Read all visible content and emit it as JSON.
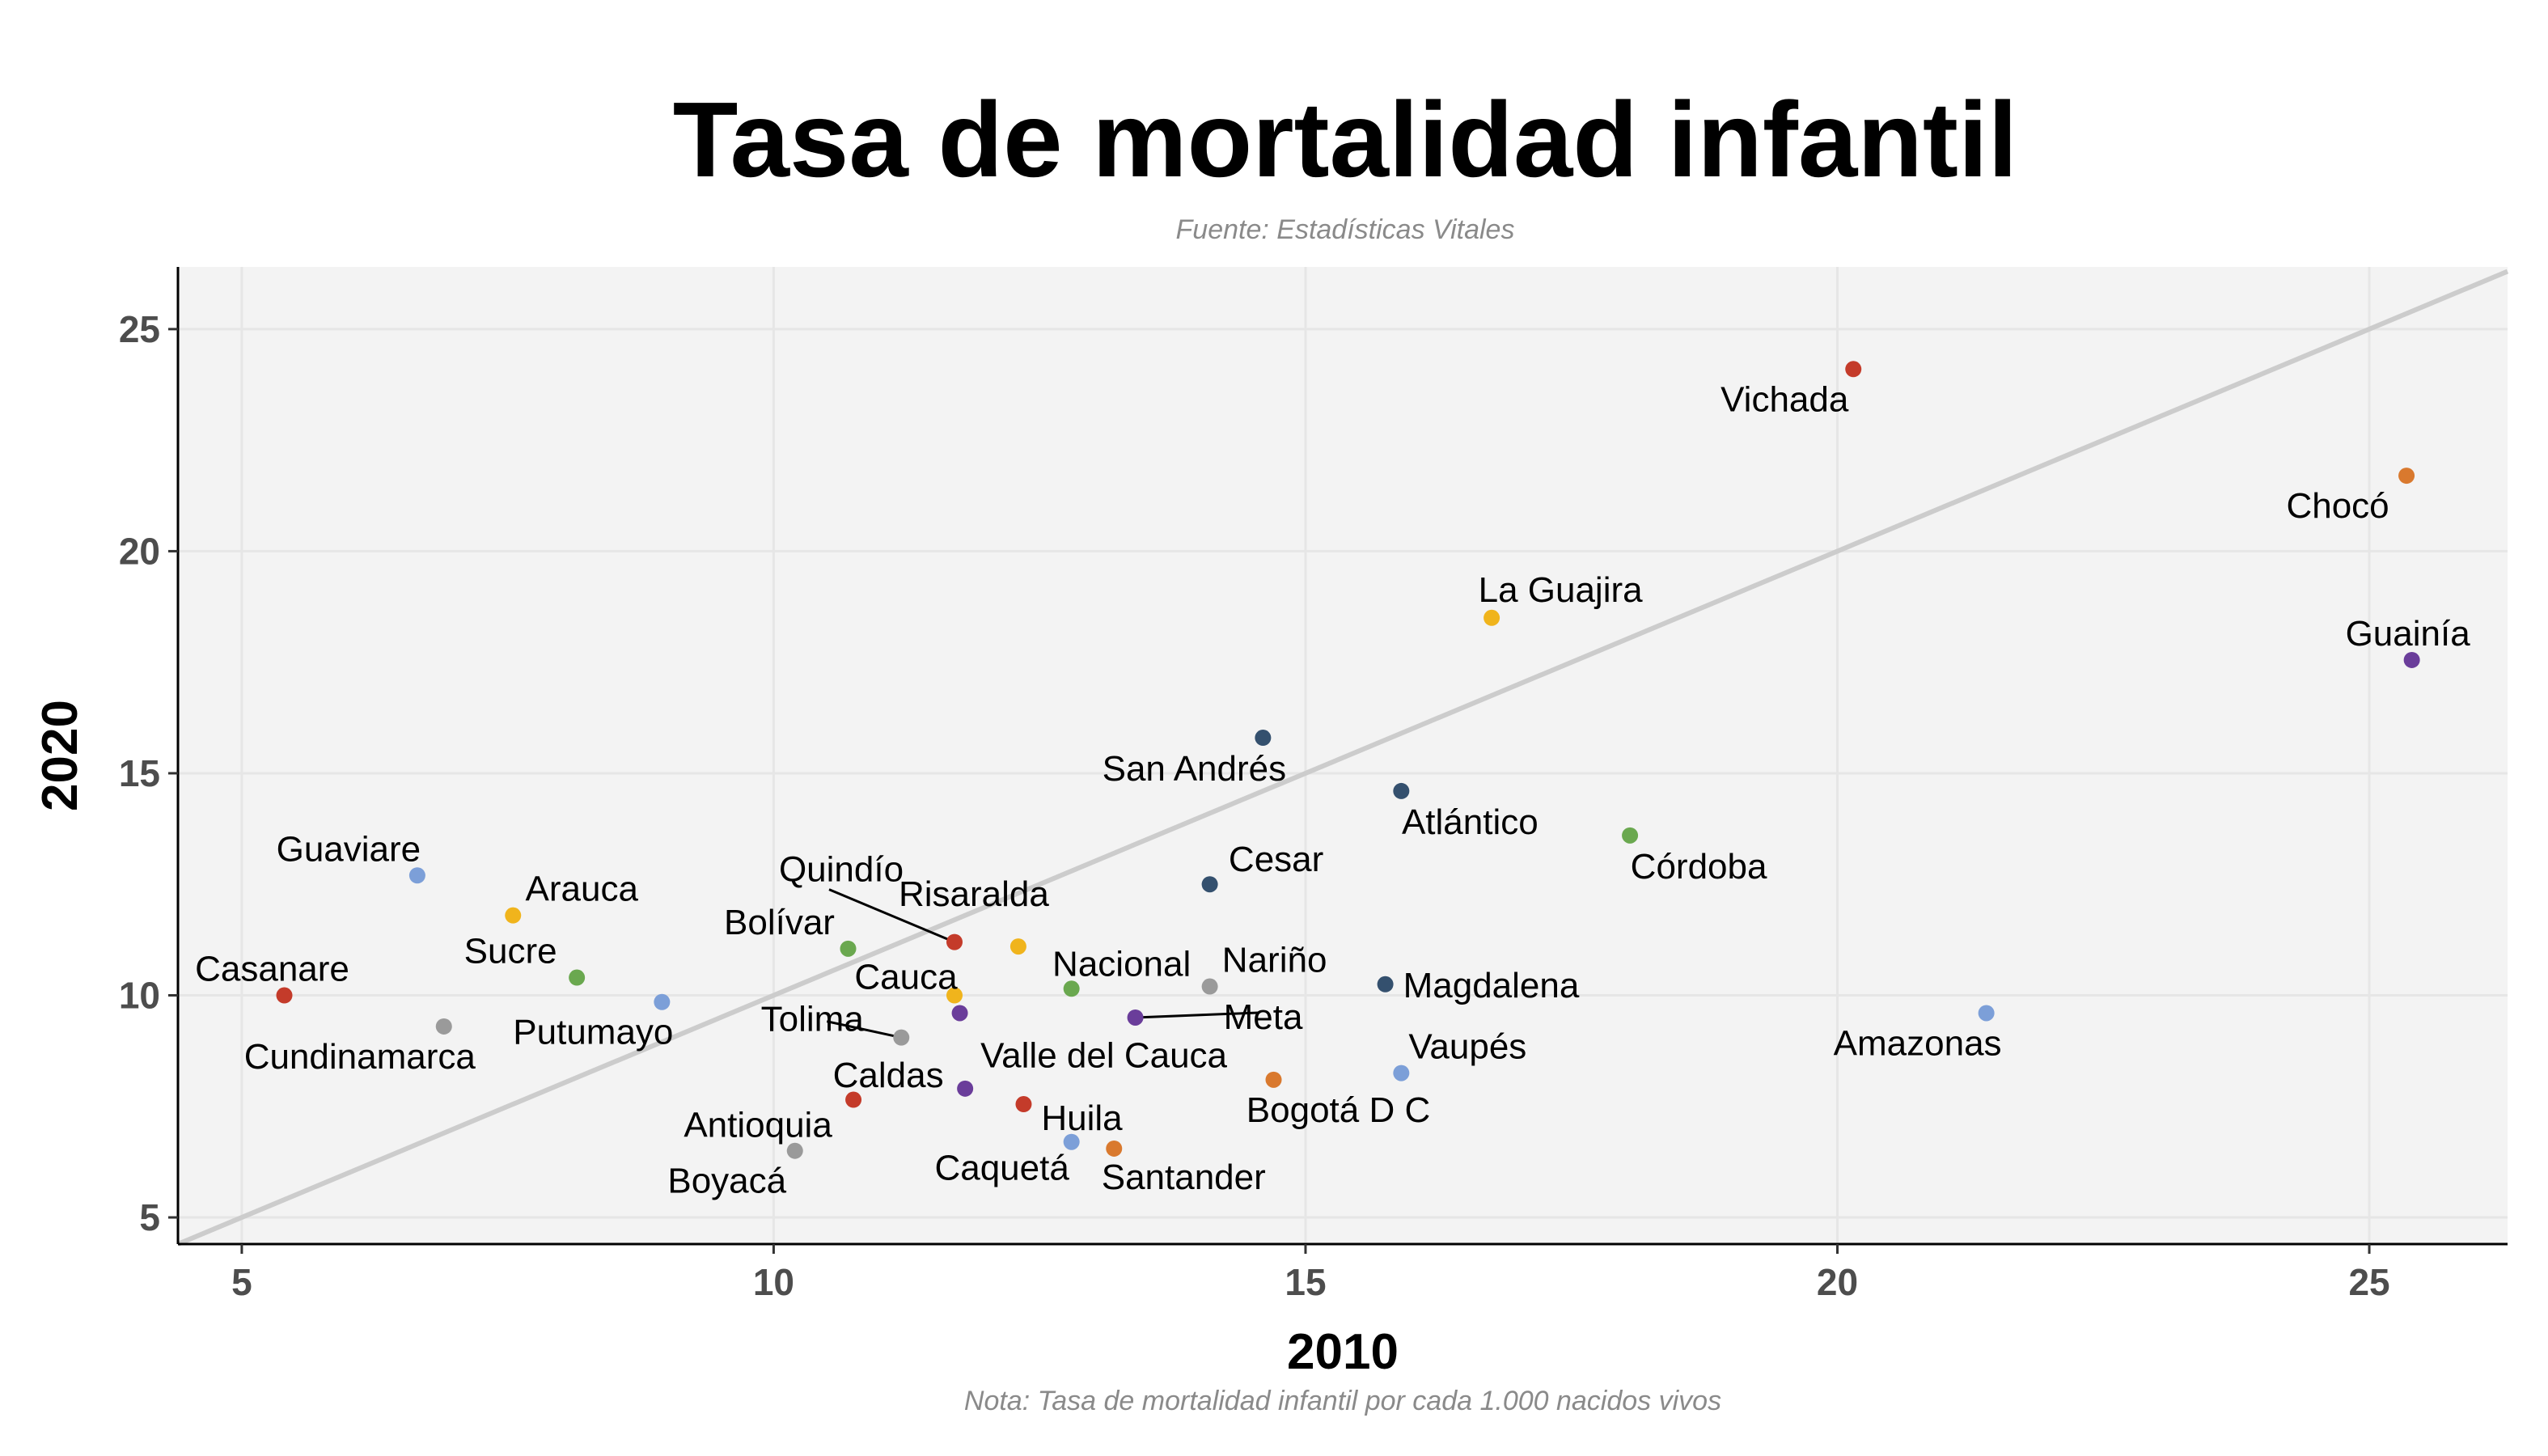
{
  "title": "Tasa de mortalidad infantil",
  "subtitle": "Fuente: Estadísticas Vitales",
  "caption": "Nota: Tasa de mortalidad infantil por cada 1.000 nacidos vivos",
  "colors": {
    "panel_background": "#f3f3f3",
    "gridline": "#e6e6e6",
    "reference_line": "#cccccc",
    "red": "#c43b2a",
    "orange": "#d9792e",
    "yellow": "#f0b41c",
    "green": "#6aa84f",
    "light_blue": "#7c9fd8",
    "navy": "#34506e",
    "purple": "#6a3d9a",
    "gray": "#9a9a9a"
  },
  "chart_data": {
    "type": "scatter",
    "title": "Tasa de mortalidad infantil",
    "xlabel": "2010",
    "ylabel": "2020",
    "xlim": [
      4.4,
      26.3
    ],
    "ylim": [
      4.4,
      26.4
    ],
    "xticks": [
      5,
      10,
      15,
      20,
      25
    ],
    "yticks": [
      5,
      10,
      15,
      20,
      25
    ],
    "grid": true,
    "legend": "none",
    "reference_line": "y = x",
    "points": [
      {
        "label": "Vichada",
        "x": 20.15,
        "y": 24.1,
        "color": "red"
      },
      {
        "label": "Chocó",
        "x": 25.35,
        "y": 21.7,
        "color": "orange"
      },
      {
        "label": "La Guajira",
        "x": 16.75,
        "y": 18.5,
        "color": "yellow"
      },
      {
        "label": "Guainía",
        "x": 25.4,
        "y": 17.55,
        "color": "purple"
      },
      {
        "label": "San Andrés",
        "x": 14.6,
        "y": 15.8,
        "color": "navy"
      },
      {
        "label": "Atlántico",
        "x": 15.9,
        "y": 14.6,
        "color": "navy"
      },
      {
        "label": "Córdoba",
        "x": 18.05,
        "y": 13.6,
        "color": "green"
      },
      {
        "label": "Cesar",
        "x": 14.1,
        "y": 12.5,
        "color": "navy"
      },
      {
        "label": "Guaviare",
        "x": 6.65,
        "y": 12.7,
        "color": "light_blue"
      },
      {
        "label": "Arauca",
        "x": 7.55,
        "y": 11.8,
        "color": "yellow"
      },
      {
        "label": "Quindío",
        "x": 11.7,
        "y": 11.2,
        "color": "red"
      },
      {
        "label": "Risaralda",
        "x": 12.3,
        "y": 11.1,
        "color": "yellow"
      },
      {
        "label": "Bolívar",
        "x": 10.7,
        "y": 11.05,
        "color": "green"
      },
      {
        "label": "Sucre",
        "x": 8.15,
        "y": 10.4,
        "color": "green"
      },
      {
        "label": "Casanare",
        "x": 5.4,
        "y": 10.0,
        "color": "red"
      },
      {
        "label": "Cauca",
        "x": 11.7,
        "y": 10.0,
        "color": "yellow"
      },
      {
        "label": "Nacional",
        "x": 12.8,
        "y": 10.15,
        "color": "green"
      },
      {
        "label": "Nariño",
        "x": 14.1,
        "y": 10.2,
        "color": "gray"
      },
      {
        "label": "Magdalena",
        "x": 15.75,
        "y": 10.25,
        "color": "navy"
      },
      {
        "label": "Putumayo",
        "x": 8.95,
        "y": 9.85,
        "color": "light_blue"
      },
      {
        "label": "Cundinamarca",
        "x": 6.9,
        "y": 9.3,
        "color": "gray"
      },
      {
        "label": "Tolima",
        "x": 11.2,
        "y": 9.05,
        "color": "gray"
      },
      {
        "label": "Valle del Cauca",
        "x": 11.75,
        "y": 9.6,
        "color": "purple"
      },
      {
        "label": "Meta",
        "x": 13.4,
        "y": 9.5,
        "color": "purple"
      },
      {
        "label": "Amazonas",
        "x": 21.4,
        "y": 9.6,
        "color": "light_blue"
      },
      {
        "label": "Vaupés",
        "x": 15.9,
        "y": 8.25,
        "color": "light_blue"
      },
      {
        "label": "Bogotá D C",
        "x": 14.7,
        "y": 8.1,
        "color": "orange"
      },
      {
        "label": "Caldas",
        "x": 11.8,
        "y": 7.9,
        "color": "purple"
      },
      {
        "label": "Antioquia",
        "x": 10.75,
        "y": 7.65,
        "color": "red"
      },
      {
        "label": "Huila",
        "x": 12.35,
        "y": 7.55,
        "color": "red"
      },
      {
        "label": "Caquetá",
        "x": 12.8,
        "y": 6.7,
        "color": "light_blue"
      },
      {
        "label": "Santander",
        "x": 13.2,
        "y": 6.55,
        "color": "orange"
      },
      {
        "label": "Boyacá",
        "x": 10.2,
        "y": 6.5,
        "color": "gray"
      }
    ]
  }
}
